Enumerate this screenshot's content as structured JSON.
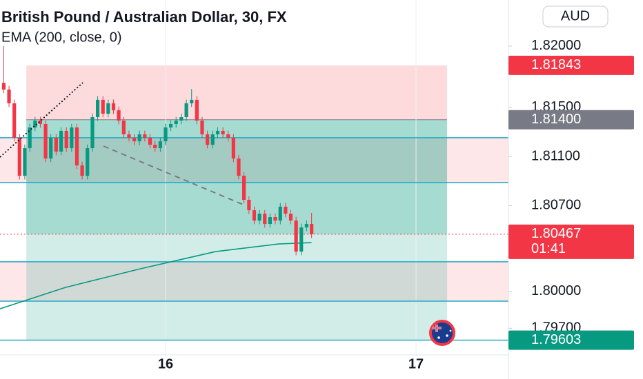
{
  "chart_data": {
    "type": "candlestick",
    "title": "British Pound / Australian Dollar, 30, FX",
    "currency": "AUD",
    "up_color": "#089981",
    "down_color": "#f23645",
    "xlim": [
      15.339,
      17.369
    ],
    "ylim": [
      1.79483,
      1.82376
    ],
    "xticks": [
      16,
      17
    ],
    "yticks": [
      {
        "value": 1.82,
        "label": "1.82000"
      },
      {
        "value": 1.815,
        "label": "1.81500"
      },
      {
        "value": 1.811,
        "label": "1.81100"
      },
      {
        "value": 1.807,
        "label": "1.80700"
      },
      {
        "value": 1.8,
        "label": "1.80000"
      },
      {
        "value": 1.797,
        "label": "1.79700"
      }
    ],
    "x": [
      15.354,
      15.375,
      15.396,
      15.417,
      15.438,
      15.458,
      15.479,
      15.5,
      15.521,
      15.542,
      15.563,
      15.583,
      15.604,
      15.625,
      15.646,
      15.667,
      15.688,
      15.708,
      15.729,
      15.75,
      15.771,
      15.792,
      15.813,
      15.833,
      15.854,
      15.875,
      15.896,
      15.917,
      15.938,
      15.958,
      15.979,
      16.0,
      16.021,
      16.042,
      16.063,
      16.083,
      16.104,
      16.125,
      16.146,
      16.167,
      16.188,
      16.208,
      16.229,
      16.25,
      16.271,
      16.292,
      16.313,
      16.333,
      16.354,
      16.375,
      16.396,
      16.417,
      16.438,
      16.458,
      16.479,
      16.5,
      16.521,
      16.542,
      16.563,
      16.583
    ],
    "open": [
      1.817,
      1.81646,
      1.81534,
      1.81253,
      1.80943,
      1.81168,
      1.81337,
      1.81393,
      1.81365,
      1.81084,
      1.81253,
      1.8114,
      1.81309,
      1.81168,
      1.81337,
      1.81028,
      1.80943,
      1.81168,
      1.81421,
      1.81562,
      1.81449,
      1.81534,
      1.81477,
      1.81393,
      1.81281,
      1.81253,
      1.81224,
      1.81281,
      1.81253,
      1.81196,
      1.81168,
      1.81224,
      1.81337,
      1.81365,
      1.81393,
      1.81421,
      1.81534,
      1.81562,
      1.81393,
      1.81281,
      1.81196,
      1.81281,
      1.81309,
      1.81281,
      1.81253,
      1.81084,
      1.80943,
      1.80747,
      1.80662,
      1.80578,
      1.80634,
      1.8055,
      1.80606,
      1.80578,
      1.80691,
      1.80634,
      1.80578,
      1.80325,
      1.80522,
      1.8055
    ],
    "high": [
      1.82,
      1.81676,
      1.81564,
      1.81283,
      1.81198,
      1.81367,
      1.81423,
      1.81423,
      1.81395,
      1.81283,
      1.81283,
      1.81339,
      1.81339,
      1.81367,
      1.81367,
      1.81058,
      1.81198,
      1.81451,
      1.81592,
      1.81592,
      1.81564,
      1.81564,
      1.81507,
      1.81423,
      1.81311,
      1.81283,
      1.81311,
      1.81311,
      1.81283,
      1.81226,
      1.81254,
      1.81367,
      1.81395,
      1.81423,
      1.81451,
      1.81564,
      1.8165,
      1.81592,
      1.81423,
      1.81311,
      1.81311,
      1.81339,
      1.81339,
      1.81311,
      1.81283,
      1.81114,
      1.80973,
      1.80777,
      1.80692,
      1.80664,
      1.80664,
      1.80636,
      1.80636,
      1.80721,
      1.80721,
      1.80664,
      1.80608,
      1.80552,
      1.8058,
      1.8064
    ],
    "low": [
      1.81616,
      1.81504,
      1.81223,
      1.80913,
      1.80913,
      1.81138,
      1.81307,
      1.81335,
      1.81054,
      1.81054,
      1.8111,
      1.8111,
      1.81138,
      1.81138,
      1.80998,
      1.80913,
      1.80913,
      1.81138,
      1.81391,
      1.81419,
      1.81419,
      1.81447,
      1.81363,
      1.81251,
      1.81223,
      1.81194,
      1.81194,
      1.81223,
      1.81166,
      1.81138,
      1.81138,
      1.81194,
      1.81307,
      1.81335,
      1.81363,
      1.81391,
      1.81504,
      1.81363,
      1.81251,
      1.81166,
      1.81166,
      1.81251,
      1.81251,
      1.81223,
      1.81054,
      1.80913,
      1.80717,
      1.80632,
      1.80548,
      1.80548,
      1.8052,
      1.8052,
      1.80548,
      1.80548,
      1.80604,
      1.80548,
      1.80295,
      1.80295,
      1.80492,
      1.80436
    ],
    "close": [
      1.81646,
      1.81534,
      1.81253,
      1.80943,
      1.81168,
      1.81337,
      1.81393,
      1.81365,
      1.81084,
      1.81253,
      1.8114,
      1.81309,
      1.81168,
      1.81337,
      1.81028,
      1.80943,
      1.81168,
      1.81421,
      1.81562,
      1.81449,
      1.81534,
      1.81477,
      1.81393,
      1.81281,
      1.81253,
      1.81224,
      1.81281,
      1.81253,
      1.81196,
      1.81168,
      1.81224,
      1.81337,
      1.81365,
      1.81393,
      1.81421,
      1.81534,
      1.81562,
      1.81393,
      1.81281,
      1.81196,
      1.81281,
      1.81309,
      1.81281,
      1.81253,
      1.81084,
      1.80943,
      1.80747,
      1.80662,
      1.80578,
      1.80634,
      1.8055,
      1.80606,
      1.80578,
      1.80691,
      1.80634,
      1.80578,
      1.80325,
      1.80522,
      1.8055,
      1.80467
    ],
    "overlays": [
      {
        "name": "EMA (200, close, 0)",
        "color": "#089981",
        "x": [
          15.339,
          15.6,
          15.9,
          16.2,
          16.45,
          16.583
        ],
        "values": [
          1.79859,
          1.80033,
          1.80185,
          1.80325,
          1.80387,
          1.80398
        ]
      }
    ],
    "levels": [
      1.81253,
      1.80888,
      1.80242,
      1.79921,
      1.79603
    ],
    "level_color": "#26a9c5",
    "zones": [
      [
        1.81253,
        1.80888
      ],
      [
        1.80242,
        1.79921
      ]
    ],
    "position": {
      "x": [
        15.444,
        17.124
      ],
      "stop": 1.81843,
      "entry": 1.814,
      "target": 1.79603
    },
    "price_labels": [
      {
        "value": 1.81843,
        "label": "1.81843",
        "color": "#f23645"
      },
      {
        "value": 1.814,
        "label": "1.81400",
        "color": "#787b86"
      },
      {
        "value": 1.80467,
        "label": "1.80467",
        "color": "#f23645",
        "line": "dotted",
        "countdown": "01:41"
      },
      {
        "value": 1.79603,
        "label": "1.79603",
        "color": "#089981"
      }
    ]
  }
}
